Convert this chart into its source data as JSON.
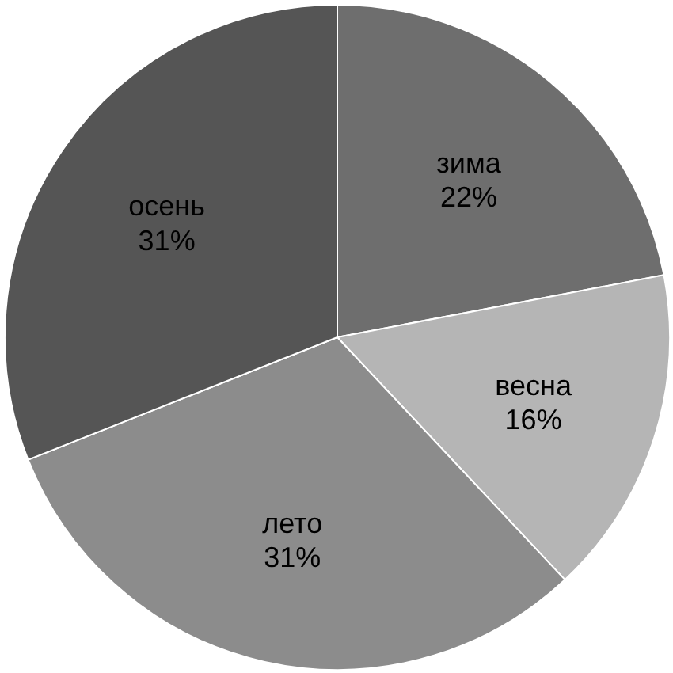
{
  "chart_data": {
    "type": "pie",
    "categories": [
      "зима",
      "весна",
      "лето",
      "осень"
    ],
    "values": [
      22,
      16,
      31,
      31
    ],
    "value_labels": [
      "22%",
      "16%",
      "31%",
      "31%"
    ],
    "colors": [
      "#6e6e6e",
      "#b5b5b5",
      "#8c8c8c",
      "#555555"
    ]
  }
}
